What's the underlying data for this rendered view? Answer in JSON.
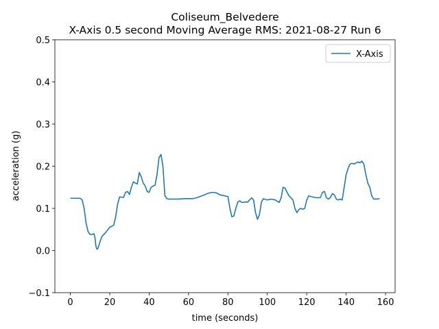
{
  "chart_data": {
    "type": "line",
    "title": "Coliseum_Belvedere",
    "subtitle": "X-Axis 0.5 second Moving Average RMS: 2021-08-27 Run 6",
    "x_label": "time (seconds)",
    "y_label": "acceleration (g)",
    "x": [
      0,
      5,
      6,
      7,
      8,
      9,
      10,
      11,
      12,
      12.5,
      13,
      13.5,
      14,
      15,
      16,
      18,
      20,
      22,
      23,
      24,
      25,
      27,
      28,
      29,
      30,
      31,
      32,
      33,
      34,
      35,
      36,
      37,
      38,
      39,
      40,
      41,
      42,
      43,
      44,
      45,
      46,
      47,
      48,
      49,
      50,
      55,
      58,
      62,
      64,
      67,
      70,
      72,
      74,
      76,
      78,
      80,
      81,
      82,
      83,
      84,
      85,
      86,
      87,
      89,
      90,
      92,
      93,
      94,
      95,
      96,
      97,
      98,
      100,
      102,
      104,
      106,
      107,
      108,
      109,
      110,
      111,
      113,
      114,
      115,
      116,
      117,
      118,
      119,
      120,
      121,
      122,
      124,
      126,
      127,
      128,
      129,
      130,
      131,
      132,
      133,
      134,
      135,
      136,
      137,
      138,
      139,
      140,
      141,
      142,
      143,
      144,
      145,
      146,
      147,
      148,
      149,
      150,
      151,
      152,
      153,
      154,
      155,
      157
    ],
    "series": [
      {
        "name": "X-Axis",
        "color": "#1f77b4",
        "values": [
          0.124,
          0.124,
          0.12,
          0.1,
          0.065,
          0.045,
          0.038,
          0.038,
          0.04,
          0.03,
          0.01,
          0.003,
          0.005,
          0.02,
          0.033,
          0.043,
          0.055,
          0.06,
          0.08,
          0.11,
          0.127,
          0.126,
          0.138,
          0.14,
          0.133,
          0.15,
          0.163,
          0.16,
          0.158,
          0.185,
          0.175,
          0.16,
          0.153,
          0.14,
          0.138,
          0.15,
          0.153,
          0.155,
          0.18,
          0.22,
          0.228,
          0.2,
          0.13,
          0.123,
          0.122,
          0.122,
          0.123,
          0.123,
          0.125,
          0.13,
          0.136,
          0.138,
          0.137,
          0.132,
          0.13,
          0.128,
          0.1,
          0.08,
          0.082,
          0.1,
          0.115,
          0.118,
          0.114,
          0.115,
          0.115,
          0.125,
          0.12,
          0.09,
          0.074,
          0.085,
          0.115,
          0.123,
          0.12,
          0.122,
          0.12,
          0.114,
          0.125,
          0.15,
          0.148,
          0.138,
          0.13,
          0.12,
          0.1,
          0.09,
          0.097,
          0.1,
          0.098,
          0.1,
          0.12,
          0.13,
          0.128,
          0.126,
          0.125,
          0.126,
          0.138,
          0.14,
          0.125,
          0.122,
          0.126,
          0.135,
          0.132,
          0.122,
          0.12,
          0.122,
          0.12,
          0.15,
          0.18,
          0.195,
          0.205,
          0.207,
          0.205,
          0.208,
          0.21,
          0.208,
          0.212,
          0.205,
          0.18,
          0.16,
          0.15,
          0.13,
          0.122,
          0.122,
          0.123
        ]
      }
    ],
    "xlim": [
      -7.85,
      164.85
    ],
    "xticks": [
      0,
      20,
      40,
      60,
      80,
      100,
      120,
      140,
      160
    ],
    "ylim": [
      -0.1,
      0.5
    ],
    "yticks": [
      {
        "value": -0.1,
        "label": "−0.1"
      },
      {
        "value": 0,
        "label": "0.0"
      },
      0.1,
      0.2,
      0.3,
      0.4,
      0.5
    ],
    "legend": "upper right"
  }
}
